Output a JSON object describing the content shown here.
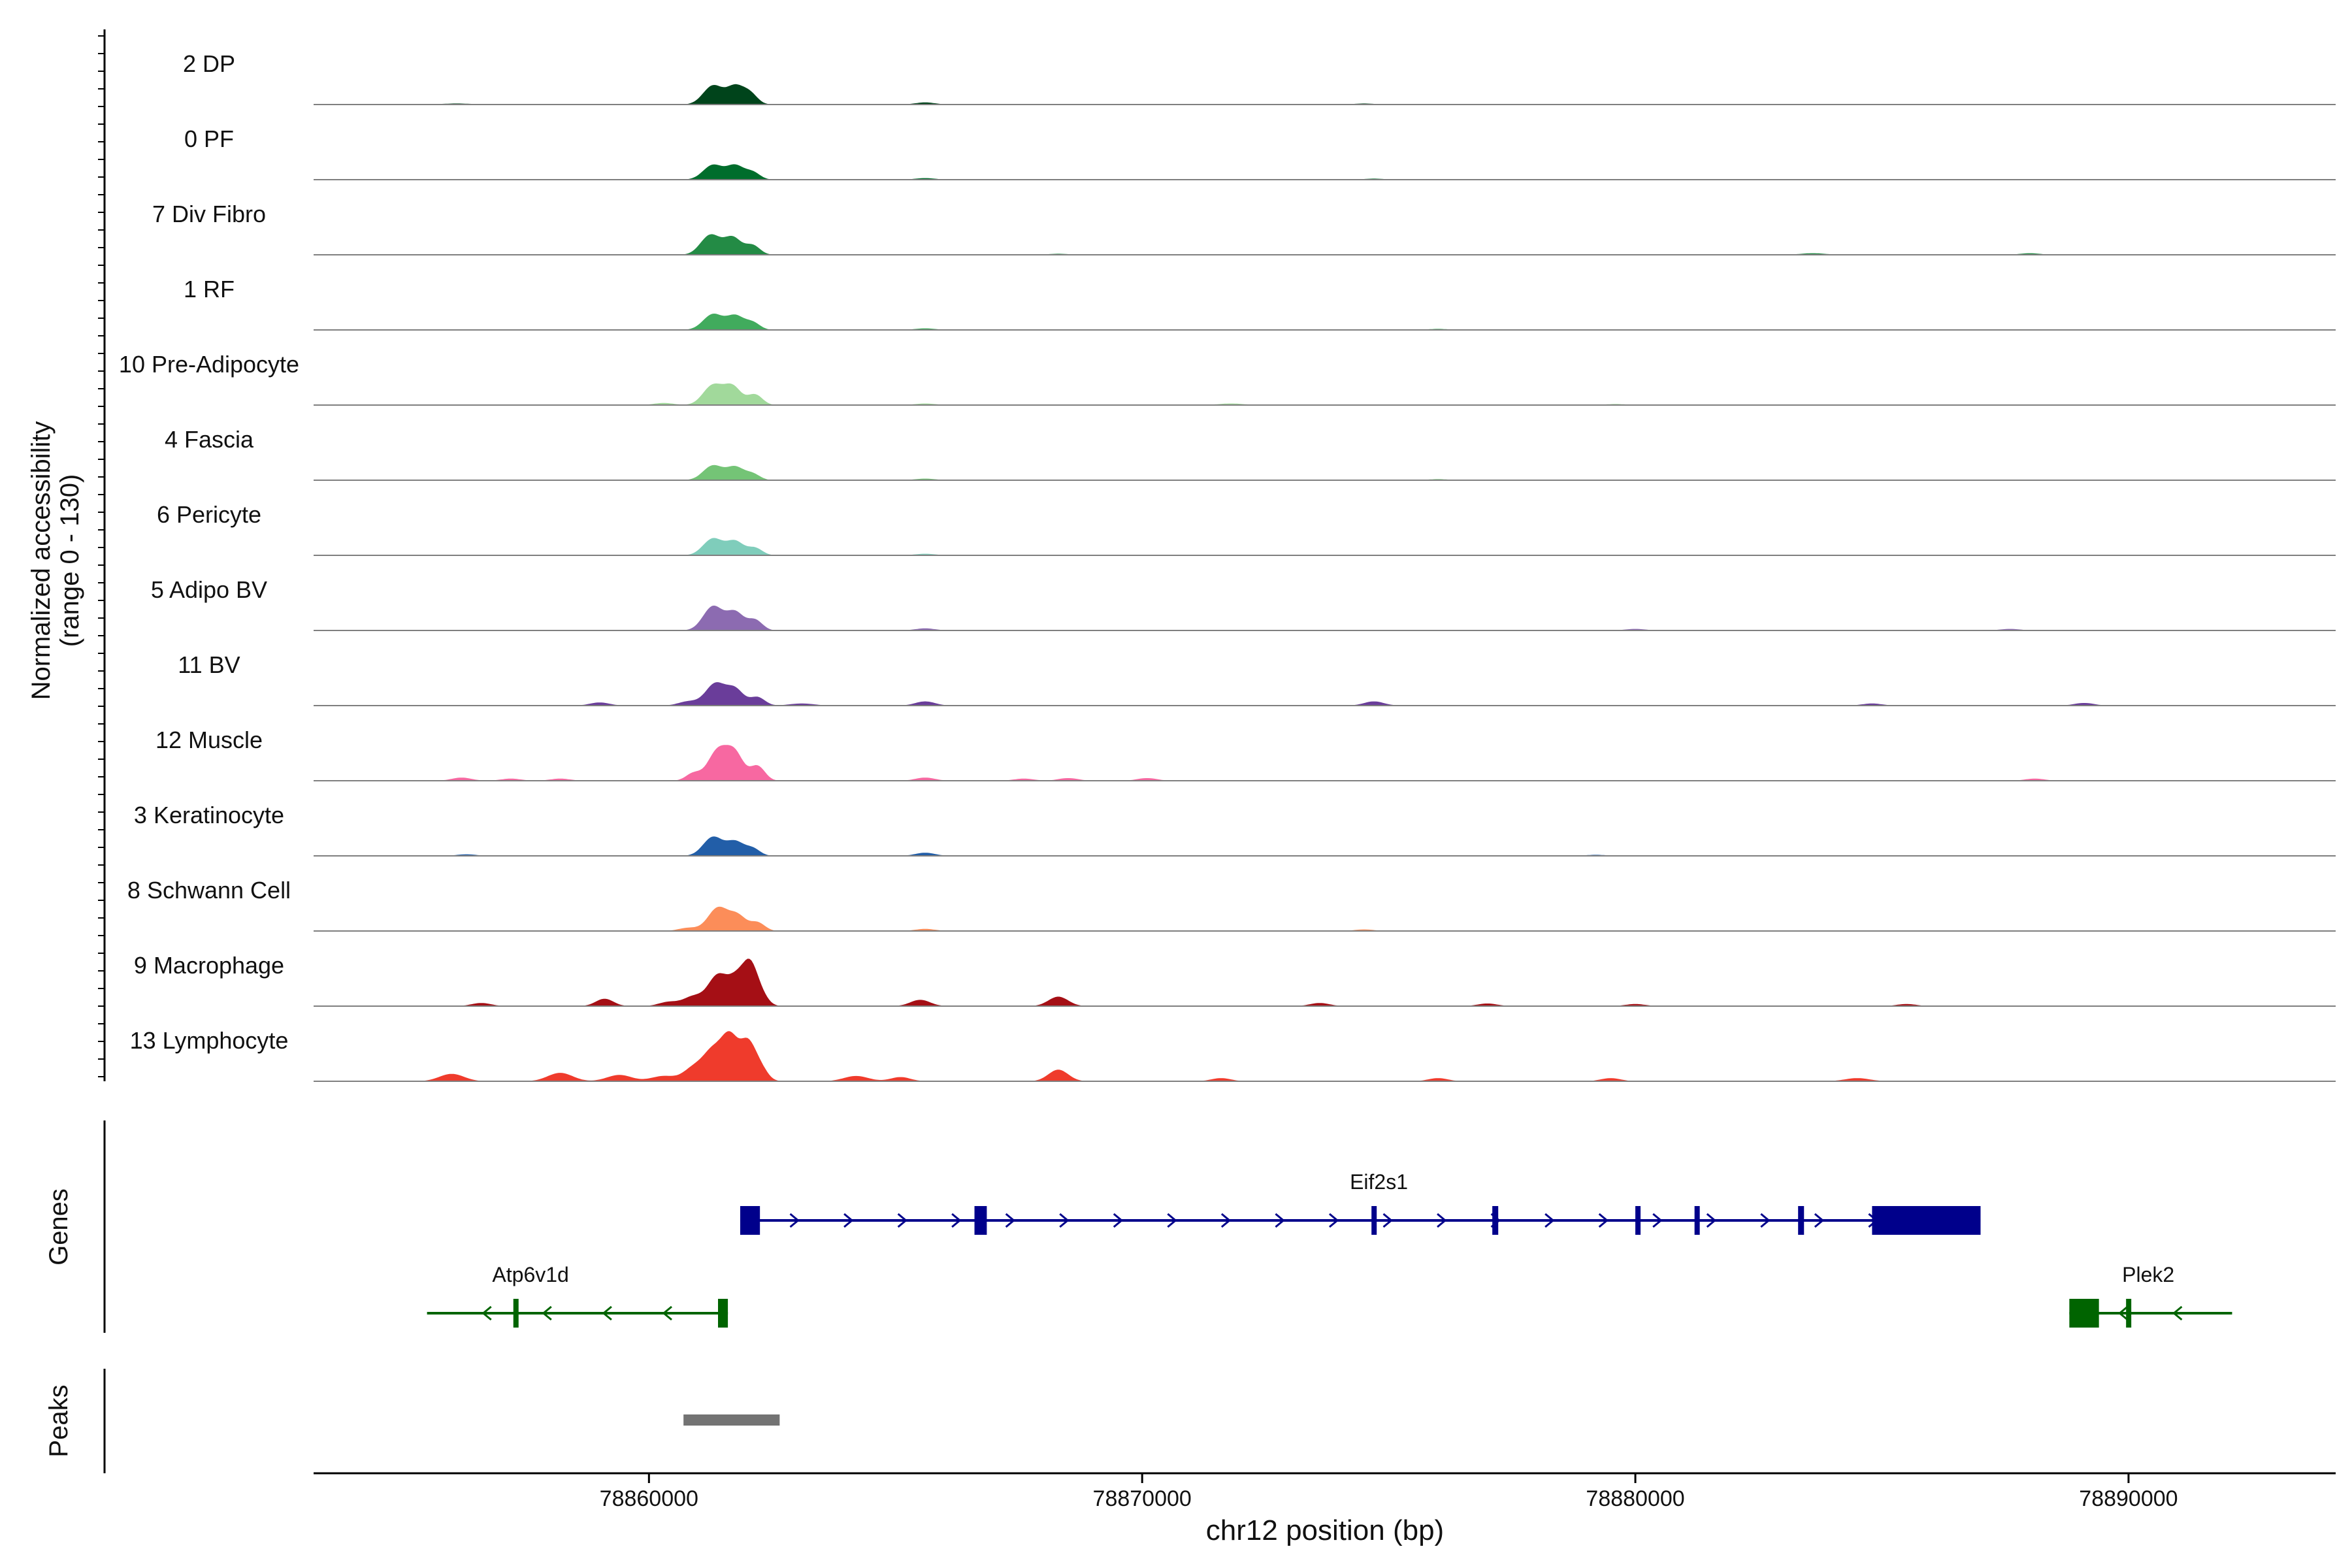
{
  "chart_data": {
    "type": "area",
    "title": "",
    "ylabel_line1": "Normalized accessibility",
    "ylabel_line2": "(range 0 - 130)",
    "xlabel": "chr12 position (bp)",
    "xlim": [
      78853200,
      78894200
    ],
    "ylim": [
      0,
      130
    ],
    "xticks": [
      78860000,
      78870000,
      78880000,
      78890000
    ],
    "xtick_labels": [
      "78860000",
      "78870000",
      "78880000",
      "78890000"
    ],
    "genes_label": "Genes",
    "peaks_label": "Peaks",
    "tracks": [
      {
        "name": "2 DP",
        "color": "#00441b",
        "peaks": [
          [
            78861300,
            36,
            200
          ],
          [
            78861750,
            33,
            170
          ],
          [
            78862050,
            20,
            150
          ],
          [
            78865600,
            4,
            200
          ],
          [
            78856100,
            2,
            300
          ],
          [
            78874500,
            2,
            200
          ]
        ]
      },
      {
        "name": "0 PF",
        "color": "#006d2c",
        "peaks": [
          [
            78861300,
            28,
            200
          ],
          [
            78861750,
            26,
            170
          ],
          [
            78862100,
            14,
            150
          ],
          [
            78865600,
            3,
            200
          ],
          [
            78874700,
            2,
            200
          ]
        ]
      },
      {
        "name": "7 Div Fibro",
        "color": "#238b45",
        "peaks": [
          [
            78861250,
            38,
            200
          ],
          [
            78861700,
            32,
            170
          ],
          [
            78862100,
            18,
            150
          ],
          [
            78868300,
            2,
            200
          ],
          [
            78883600,
            3,
            250
          ],
          [
            78888000,
            3,
            200
          ]
        ]
      },
      {
        "name": "1 RF",
        "color": "#41ab5d",
        "peaks": [
          [
            78861300,
            30,
            200
          ],
          [
            78861750,
            26,
            170
          ],
          [
            78862100,
            14,
            150
          ],
          [
            78865600,
            3,
            200
          ],
          [
            78876000,
            2,
            200
          ]
        ]
      },
      {
        "name": "10 Pre-Adipocyte",
        "color": "#a1d99b",
        "peaks": [
          [
            78861300,
            38,
            200
          ],
          [
            78861700,
            34,
            170
          ],
          [
            78862150,
            20,
            150
          ],
          [
            78860300,
            4,
            200
          ],
          [
            78865600,
            3,
            200
          ],
          [
            78871800,
            3,
            250
          ],
          [
            78879600,
            2,
            200
          ]
        ]
      },
      {
        "name": "4 Fascia",
        "color": "#74c476",
        "peaks": [
          [
            78861300,
            28,
            200
          ],
          [
            78861750,
            24,
            170
          ],
          [
            78862100,
            12,
            150
          ],
          [
            78865600,
            3,
            200
          ],
          [
            78876000,
            2,
            200
          ]
        ]
      },
      {
        "name": "6 Pericyte",
        "color": "#7fcdbb",
        "peaks": [
          [
            78861300,
            32,
            200
          ],
          [
            78861750,
            26,
            170
          ],
          [
            78862150,
            14,
            150
          ],
          [
            78865600,
            3,
            200
          ]
        ]
      },
      {
        "name": "5 Adipo BV",
        "color": "#8c6bb1",
        "peaks": [
          [
            78861300,
            46,
            200
          ],
          [
            78861750,
            34,
            170
          ],
          [
            78862150,
            20,
            150
          ],
          [
            78865600,
            4,
            200
          ],
          [
            78880000,
            3,
            200
          ],
          [
            78887600,
            3,
            200
          ]
        ]
      },
      {
        "name": "11 BV",
        "color": "#6a3d9a",
        "peaks": [
          [
            78861350,
            42,
            200
          ],
          [
            78861750,
            30,
            170
          ],
          [
            78862200,
            16,
            150
          ],
          [
            78860800,
            8,
            200
          ],
          [
            78865600,
            8,
            200
          ],
          [
            78874700,
            8,
            200
          ],
          [
            78859000,
            6,
            200
          ],
          [
            78863100,
            4,
            250
          ],
          [
            78884800,
            4,
            200
          ],
          [
            78889100,
            5,
            200
          ]
        ]
      },
      {
        "name": "12 Muscle",
        "color": "#f768a1",
        "peaks": [
          [
            78861400,
            58,
            200
          ],
          [
            78861750,
            48,
            170
          ],
          [
            78862200,
            28,
            150
          ],
          [
            78860900,
            14,
            150
          ],
          [
            78856200,
            6,
            200
          ],
          [
            78857200,
            4,
            200
          ],
          [
            78858200,
            4,
            200
          ],
          [
            78865600,
            6,
            200
          ],
          [
            78867600,
            4,
            200
          ],
          [
            78868500,
            5,
            200
          ],
          [
            78870100,
            5,
            200
          ],
          [
            78888100,
            4,
            200
          ]
        ]
      },
      {
        "name": "3 Keratinocyte",
        "color": "#225ea8",
        "peaks": [
          [
            78861300,
            36,
            200
          ],
          [
            78861750,
            26,
            170
          ],
          [
            78862100,
            14,
            150
          ],
          [
            78865600,
            6,
            200
          ],
          [
            78856300,
            3,
            200
          ],
          [
            78879200,
            2,
            200
          ]
        ]
      },
      {
        "name": "8 Schwann Cell",
        "color": "#fc8d59",
        "peaks": [
          [
            78861400,
            44,
            200
          ],
          [
            78861800,
            28,
            170
          ],
          [
            78862200,
            16,
            150
          ],
          [
            78860800,
            6,
            200
          ],
          [
            78865600,
            4,
            200
          ],
          [
            78874500,
            3,
            200
          ]
        ]
      },
      {
        "name": "9 Macrophage",
        "color": "#a50f15",
        "peaks": [
          [
            78861400,
            58,
            200
          ],
          [
            78861800,
            50,
            170
          ],
          [
            78862050,
            62,
            140
          ],
          [
            78862250,
            24,
            150
          ],
          [
            78860900,
            18,
            200
          ],
          [
            78860400,
            8,
            200
          ],
          [
            78859100,
            14,
            180
          ],
          [
            78856600,
            6,
            200
          ],
          [
            78865500,
            12,
            200
          ],
          [
            78868300,
            18,
            200
          ],
          [
            78873600,
            6,
            200
          ],
          [
            78877000,
            5,
            200
          ],
          [
            78880000,
            4,
            200
          ],
          [
            78885500,
            4,
            200
          ]
        ]
      },
      {
        "name": "13 Lymphocyte",
        "color": "#ef3b2c",
        "peaks": [
          [
            78861300,
            56,
            200
          ],
          [
            78861650,
            78,
            170
          ],
          [
            78862000,
            66,
            150
          ],
          [
            78862250,
            26,
            150
          ],
          [
            78860900,
            24,
            200
          ],
          [
            78856000,
            14,
            250
          ],
          [
            78858200,
            16,
            250
          ],
          [
            78859400,
            12,
            250
          ],
          [
            78860300,
            10,
            250
          ],
          [
            78864200,
            10,
            250
          ],
          [
            78865100,
            8,
            200
          ],
          [
            78868300,
            22,
            200
          ],
          [
            78871600,
            6,
            200
          ],
          [
            78876000,
            6,
            200
          ],
          [
            78879500,
            6,
            200
          ],
          [
            78884500,
            6,
            250
          ]
        ]
      }
    ],
    "genes": [
      {
        "name": "Eif2s1",
        "strand": "+",
        "color": "#00008b",
        "start": 78861850,
        "end": 78887000,
        "row": 0,
        "exons": [
          [
            78861850,
            78862250
          ],
          [
            78866600,
            78866850
          ],
          [
            78874650,
            78874720
          ],
          [
            78877100,
            78877220
          ],
          [
            78880000,
            78880100
          ],
          [
            78881200,
            78881270
          ],
          [
            78883300,
            78883420
          ],
          [
            78884800,
            78887000
          ]
        ]
      },
      {
        "name": "Atp6v1d",
        "strand": "-",
        "color": "#006400",
        "start": 78855500,
        "end": 78861600,
        "row": 1,
        "exons": [
          [
            78857250,
            78857330
          ],
          [
            78861400,
            78861600
          ]
        ]
      },
      {
        "name": "Plek2",
        "strand": "-",
        "color": "#006400",
        "start": 78888800,
        "end": 78892100,
        "row": 1,
        "exons": [
          [
            78888800,
            78889400
          ],
          [
            78889950,
            78890020
          ]
        ]
      }
    ],
    "peak_regions": [
      [
        78860700,
        78862650
      ]
    ],
    "peak_color": "#737373",
    "grid": false,
    "legend": "none"
  }
}
